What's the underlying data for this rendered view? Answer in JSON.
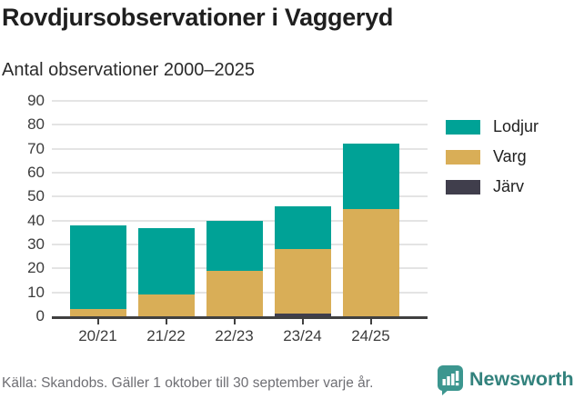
{
  "header": {
    "title": "Rovdjursobservationer i Vaggeryd",
    "subtitle": "Antal observationer 2000–2025"
  },
  "chart_data": {
    "type": "bar",
    "stacked": true,
    "title": "Rovdjursobservationer i Vaggeryd",
    "subtitle": "Antal observationer 2000–2025",
    "categories": [
      "20/21",
      "21/22",
      "22/23",
      "23/24",
      "24/25"
    ],
    "series": [
      {
        "name": "Lodjur",
        "color": "#00a296",
        "values": [
          35,
          28,
          21,
          18,
          27
        ]
      },
      {
        "name": "Varg",
        "color": "#d9ae57",
        "values": [
          3,
          9,
          19,
          27,
          45
        ]
      },
      {
        "name": "Järv",
        "color": "#403e4c",
        "values": [
          0,
          0,
          0,
          1,
          0
        ]
      }
    ],
    "totals": [
      38,
      37,
      40,
      46,
      72
    ],
    "xlabel": "",
    "ylabel": "Antal observationer",
    "ylim": [
      0,
      90
    ],
    "yticks": [
      0,
      10,
      20,
      30,
      40,
      50,
      60,
      70,
      80,
      90
    ],
    "grid": true,
    "legend_position": "right",
    "stack_order_bottom_to_top": [
      "Järv",
      "Varg",
      "Lodjur"
    ]
  },
  "footer": {
    "source": "Källa: Skandobs. Gäller 1 oktober till 30 september varje år.",
    "brand": "Newsworthy"
  },
  "colors": {
    "lodjur": "#00a296",
    "varg": "#d9ae57",
    "jarv": "#403e4c",
    "gridline": "#e4e4e4",
    "axis": "#404040",
    "brand_teal": "#3c968f",
    "brand_text": "#33827d",
    "source_text": "#6f6f74"
  }
}
